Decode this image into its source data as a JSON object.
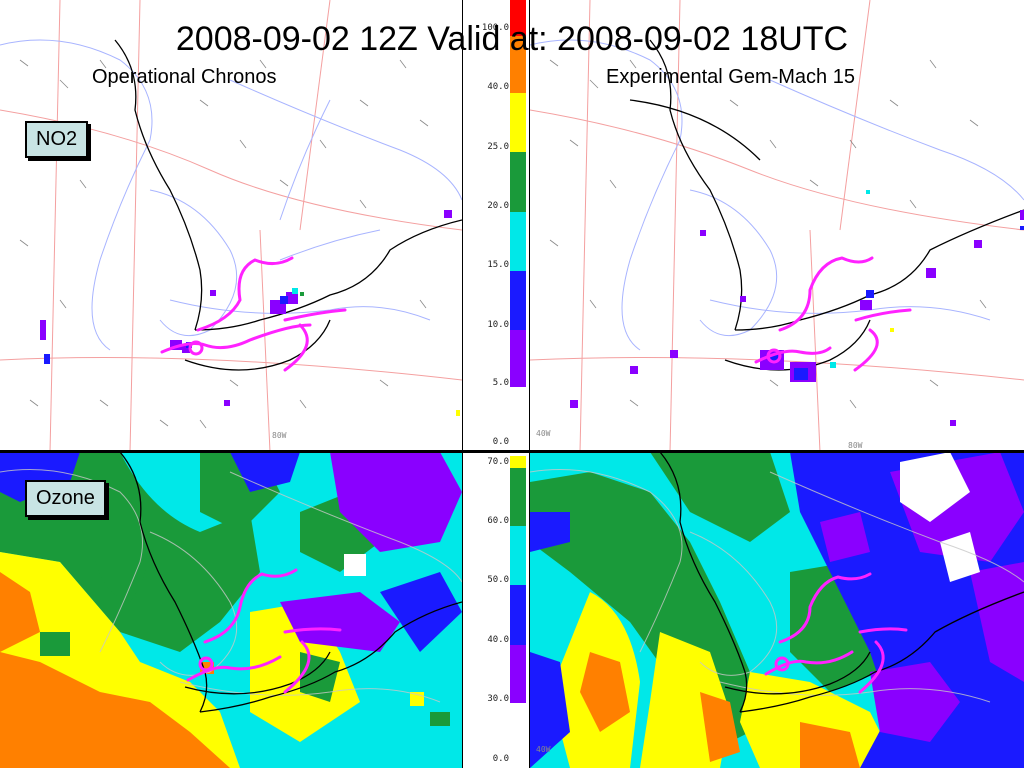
{
  "header": {
    "title": "2008-09-02 12Z Valid at:  2008-09-02 18UTC",
    "left_model": "Operational Chronos",
    "right_model": "Experimental Gem-Mach 15"
  },
  "panels": {
    "no2_label": "NO2",
    "ozone_label": "Ozone"
  },
  "map_labels": {
    "no2_left_lon": "80W",
    "no2_right_lon_a": "40W",
    "no2_right_lon_b": "80W",
    "o3_left_lon": "",
    "o3_right_lon": "40W"
  },
  "colors": {
    "purple": "#8a00ff",
    "blue": "#1a1aff",
    "cyan": "#00e8e8",
    "green": "#1a9a3a",
    "yellow": "#ffff00",
    "orange": "#ff8000",
    "red": "#ff0000",
    "white": "#ffffff",
    "front": "#ff22ff"
  },
  "no2_scale": {
    "ticks": [
      "0.0",
      "5.0",
      "10.0",
      "15.0",
      "20.0",
      "25.0",
      "40.0",
      "100.0"
    ],
    "bins": [
      {
        "from": "0.0",
        "to": "5.0",
        "color": "white"
      },
      {
        "from": "5.0",
        "to": "10.0",
        "color": "purple"
      },
      {
        "from": "10.0",
        "to": "15.0",
        "color": "blue"
      },
      {
        "from": "15.0",
        "to": "20.0",
        "color": "cyan"
      },
      {
        "from": "20.0",
        "to": "25.0",
        "color": "green"
      },
      {
        "from": "25.0",
        "to": "40.0",
        "color": "yellow"
      },
      {
        "from": "40.0",
        "to": "100.0",
        "color": "orange"
      },
      {
        "from": "100.0",
        "to": "",
        "color": "red"
      }
    ]
  },
  "ozone_scale": {
    "ticks": [
      "0.0",
      "30.0",
      "40.0",
      "50.0",
      "60.0",
      "70.0"
    ],
    "bins": [
      {
        "from": "0.0",
        "to": "30.0",
        "color": "white"
      },
      {
        "from": "30.0",
        "to": "40.0",
        "color": "purple"
      },
      {
        "from": "40.0",
        "to": "50.0",
        "color": "blue"
      },
      {
        "from": "50.0",
        "to": "60.0",
        "color": "cyan"
      },
      {
        "from": "60.0",
        "to": "70.0",
        "color": "green"
      },
      {
        "from": "70.0",
        "to": "",
        "color": "yellow"
      }
    ]
  }
}
